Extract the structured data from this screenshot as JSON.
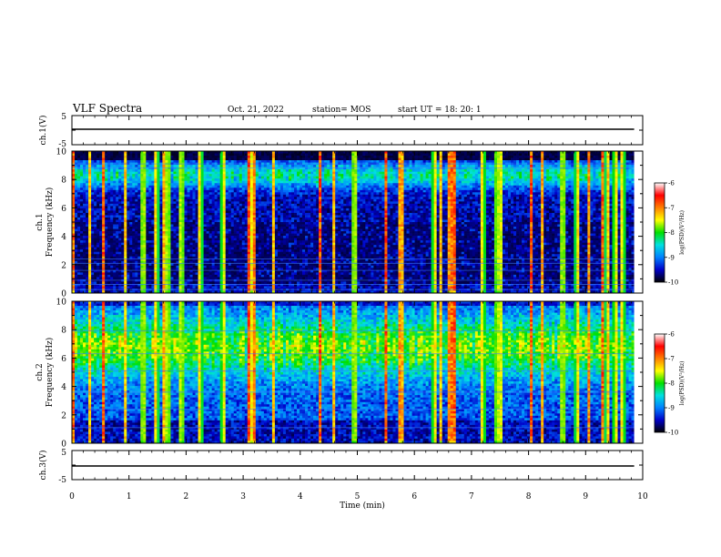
{
  "header": {
    "title": "VLF Spectra",
    "date": "Oct. 21, 2022",
    "station": "station= MOS",
    "start_ut": "start  UT  =   18: 20: 1"
  },
  "chart_data": [
    {
      "type": "line",
      "panel": "ch1-waveform",
      "ylabel": "ch.1(V)",
      "ytick_labels": [
        "5",
        "-5"
      ],
      "ylim": [
        -5,
        5
      ],
      "series": [
        {
          "values_constant": 0
        }
      ],
      "x_range_min": [
        0,
        9.85
      ]
    },
    {
      "type": "heatmap",
      "panel": "ch1-spectrogram",
      "ylabel_lines": [
        "ch.1",
        "Frequency (kHz)"
      ],
      "ytick_labels": [
        "0",
        "2",
        "4",
        "6",
        "8",
        "10"
      ],
      "ylim_khz": [
        0,
        10
      ],
      "x_range_min": [
        0,
        9.85
      ],
      "colorbar": {
        "label": "log(PSD)(V²/Hz)",
        "tick_labels": [
          "-6",
          "-7",
          "-8",
          "-9",
          "-10"
        ],
        "range": [
          -10,
          -6
        ],
        "colors": [
          "#000000",
          "#0000c8",
          "#0080ff",
          "#00e0e0",
          "#00e000",
          "#ffff00",
          "#ff8000",
          "#ff0000",
          "#ffffff"
        ]
      },
      "bright_bursts_min": [
        0.02,
        0.3,
        0.55,
        0.95,
        1.25,
        1.48,
        1.62,
        1.68,
        1.92,
        2.25,
        2.65,
        3.1,
        3.13,
        3.2,
        3.52,
        4.35,
        4.6,
        4.95,
        5.5,
        5.75,
        5.8,
        6.35,
        6.45,
        6.6,
        6.65,
        6.7,
        7.2,
        7.45,
        7.5,
        8.05,
        8.25,
        8.6,
        8.85,
        9.05,
        9.3,
        9.38,
        9.52,
        9.65
      ],
      "line_emissions_khz": [
        0.25,
        0.6,
        0.9,
        1.6,
        2.1,
        2.4,
        8.8,
        9.1
      ]
    },
    {
      "type": "heatmap",
      "panel": "ch2-spectrogram",
      "ylabel_lines": [
        "ch.2",
        "Frequency (kHz)"
      ],
      "ytick_labels": [
        "0",
        "2",
        "4",
        "6",
        "8",
        "10"
      ],
      "ylim_khz": [
        0,
        10
      ],
      "x_range_min": [
        0,
        9.85
      ],
      "colorbar": {
        "label": "log(PSD)(V²/Hz)",
        "tick_labels": [
          "-6",
          "-7",
          "-8",
          "-9",
          "-10"
        ],
        "range": [
          -10,
          -6
        ],
        "colors": [
          "#000000",
          "#0000c8",
          "#0080ff",
          "#00e0e0",
          "#00e000",
          "#ffff00",
          "#ff8000",
          "#ff0000",
          "#ffffff"
        ]
      },
      "bright_bursts_min": [
        0.02,
        0.3,
        0.55,
        0.95,
        1.25,
        1.48,
        1.62,
        1.68,
        1.92,
        2.25,
        2.65,
        3.1,
        3.13,
        3.2,
        3.52,
        4.35,
        4.6,
        4.95,
        5.5,
        5.75,
        5.8,
        6.35,
        6.45,
        6.6,
        6.65,
        6.7,
        7.2,
        7.45,
        7.5,
        8.05,
        8.25,
        8.6,
        8.85,
        9.05,
        9.3,
        9.38,
        9.52,
        9.65
      ],
      "line_emissions_khz": [
        1.1,
        2.4,
        3.6,
        5.1,
        6.3,
        7.9
      ]
    },
    {
      "type": "line",
      "panel": "ch3-waveform",
      "ylabel": "ch.3(V)",
      "ytick_labels": [
        "5",
        "-5"
      ],
      "ylim": [
        -5,
        5
      ],
      "series": [
        {
          "values_constant": 0
        }
      ],
      "x_range_min": [
        0,
        9.85
      ]
    }
  ],
  "xaxis": {
    "label": "Time  (min)",
    "tick_labels": [
      "0",
      "1",
      "2",
      "3",
      "4",
      "5",
      "6",
      "7",
      "8",
      "9",
      "10"
    ],
    "xlim": [
      0,
      10
    ]
  }
}
